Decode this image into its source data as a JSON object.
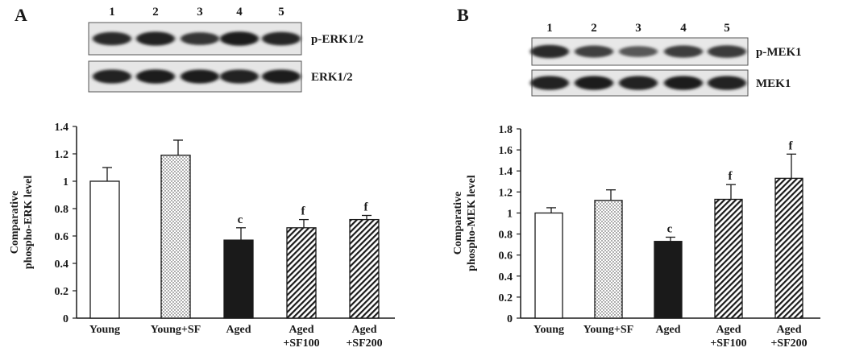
{
  "panels": [
    {
      "letter": "A",
      "lanes": [
        "1",
        "2",
        "3",
        "4",
        "5"
      ],
      "blots": [
        {
          "label": "p-ERK1/2",
          "intensity": [
            0.85,
            0.92,
            0.78,
            0.95,
            0.88
          ]
        },
        {
          "label": "ERK1/2",
          "intensity": [
            0.92,
            0.95,
            0.93,
            0.92,
            0.93
          ]
        }
      ]
    },
    {
      "letter": "B",
      "lanes": [
        "1",
        "2",
        "3",
        "4",
        "5"
      ],
      "blots": [
        {
          "label": "p-MEK1",
          "intensity": [
            0.85,
            0.7,
            0.55,
            0.72,
            0.75
          ]
        },
        {
          "label": "MEK1",
          "intensity": [
            0.92,
            0.93,
            0.92,
            0.93,
            0.92
          ]
        }
      ]
    }
  ],
  "chart_data": [
    {
      "type": "bar",
      "ylabel": [
        "Comparative",
        "phospho-ERK level"
      ],
      "ylim": [
        0,
        1.4
      ],
      "yticks": [
        "0",
        "0.2",
        "0.4",
        "0.6",
        "0.8",
        "1",
        "1.2",
        "1.4"
      ],
      "categories": [
        [
          "Young"
        ],
        [
          "Young+SF"
        ],
        [
          "Aged"
        ],
        [
          "Aged",
          "+SF100"
        ],
        [
          "Aged",
          "+SF200"
        ]
      ],
      "values": [
        1.0,
        1.19,
        0.57,
        0.66,
        0.72
      ],
      "errors": [
        0.1,
        0.11,
        0.09,
        0.06,
        0.03
      ],
      "significance": [
        "",
        "",
        "c",
        "f",
        "f"
      ],
      "fills": [
        "white",
        "dots",
        "black",
        "hatch",
        "hatch"
      ]
    },
    {
      "type": "bar",
      "ylabel": [
        "Comparative",
        "phospho-MEK level"
      ],
      "ylim": [
        0,
        1.8
      ],
      "yticks": [
        "0",
        "0.2",
        "0.4",
        "0.6",
        "0.8",
        "1",
        "1.2",
        "1.4",
        "1.6",
        "1.8"
      ],
      "categories": [
        [
          "Young"
        ],
        [
          "Young+SF"
        ],
        [
          "Aged"
        ],
        [
          "Aged",
          "+SF100"
        ],
        [
          "Aged",
          "+SF200"
        ]
      ],
      "values": [
        1.0,
        1.12,
        0.73,
        1.13,
        1.33
      ],
      "errors": [
        0.05,
        0.1,
        0.04,
        0.14,
        0.23
      ],
      "significance": [
        "",
        "",
        "c",
        "f",
        "f"
      ],
      "fills": [
        "white",
        "dots",
        "black",
        "hatch",
        "hatch"
      ]
    }
  ]
}
